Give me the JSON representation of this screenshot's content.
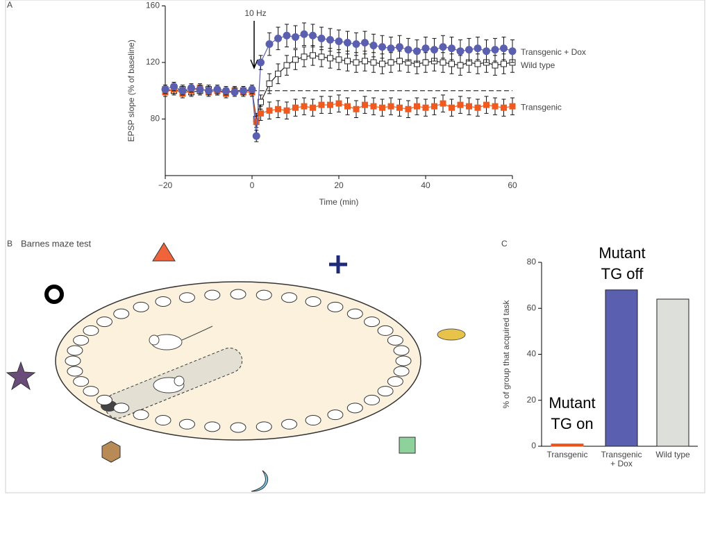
{
  "chart_data": [
    {
      "type": "line",
      "panel": "A",
      "annotation": "10 Hz",
      "xlabel": "Time (min)",
      "ylabel": "EPSP slope (% of baseline)",
      "x": [
        -20,
        -18,
        -16,
        -14,
        -12,
        -10,
        -8,
        -6,
        -4,
        -2,
        0,
        1,
        2,
        4,
        6,
        8,
        10,
        12,
        14,
        16,
        18,
        20,
        22,
        24,
        26,
        28,
        30,
        32,
        34,
        36,
        38,
        40,
        42,
        44,
        46,
        48,
        50,
        52,
        54,
        56,
        58,
        60
      ],
      "xlim": [
        -20,
        60
      ],
      "xticks": [
        {
          "value": -20,
          "label": "−20"
        },
        0,
        20,
        40,
        60
      ],
      "ylim": [
        40,
        160
      ],
      "yticks": [
        80,
        120,
        160
      ],
      "reference": 100,
      "series": [
        {
          "name": "Wild type",
          "color": "#222222",
          "marker": "open-square",
          "values": [
            101,
            100,
            101,
            99,
            100,
            101,
            100,
            99,
            100,
            100,
            100,
            80,
            92,
            105,
            112,
            118,
            122,
            124,
            125,
            124,
            123,
            122,
            121,
            120,
            121,
            120,
            119,
            120,
            121,
            120,
            119,
            120,
            121,
            120,
            119,
            118,
            120,
            119,
            120,
            118,
            119,
            120
          ],
          "errors": [
            3,
            3,
            3,
            3,
            3,
            3,
            3,
            3,
            3,
            3,
            3,
            4,
            5,
            7,
            7,
            7,
            7,
            7,
            7,
            7,
            7,
            7,
            7,
            7,
            7,
            7,
            7,
            7,
            7,
            7,
            7,
            7,
            7,
            7,
            7,
            7,
            7,
            7,
            7,
            7,
            7,
            7
          ]
        },
        {
          "name": "Transgenic",
          "color": "#f05a1e",
          "marker": "square",
          "values": [
            99,
            101,
            98,
            100,
            102,
            99,
            100,
            98,
            100,
            99,
            99,
            78,
            84,
            86,
            87,
            86,
            88,
            89,
            88,
            90,
            90,
            91,
            89,
            87,
            90,
            89,
            88,
            89,
            88,
            87,
            89,
            88,
            89,
            91,
            88,
            90,
            89,
            88,
            90,
            89,
            88,
            89
          ],
          "errors": [
            3,
            3,
            3,
            3,
            3,
            3,
            3,
            3,
            3,
            3,
            3,
            4,
            5,
            6,
            6,
            6,
            6,
            6,
            6,
            6,
            6,
            6,
            6,
            6,
            6,
            6,
            6,
            6,
            6,
            6,
            6,
            6,
            6,
            6,
            6,
            6,
            6,
            6,
            6,
            6,
            6,
            6
          ]
        },
        {
          "name": "Transgenic + Dox",
          "color": "#5b5fb0",
          "marker": "circle",
          "values": [
            101,
            103,
            100,
            102,
            101,
            100,
            101,
            100,
            99,
            100,
            101,
            68,
            120,
            133,
            137,
            139,
            138,
            140,
            139,
            137,
            136,
            135,
            134,
            133,
            134,
            132,
            131,
            130,
            131,
            129,
            128,
            130,
            129,
            131,
            130,
            128,
            129,
            130,
            128,
            129,
            130,
            128
          ],
          "errors": [
            3,
            3,
            3,
            3,
            3,
            3,
            3,
            3,
            3,
            3,
            3,
            4,
            5,
            8,
            8,
            8,
            8,
            8,
            8,
            8,
            8,
            8,
            8,
            8,
            8,
            8,
            8,
            8,
            8,
            8,
            8,
            8,
            8,
            8,
            8,
            8,
            8,
            8,
            8,
            8,
            8,
            8
          ]
        }
      ]
    },
    {
      "type": "bar",
      "panel": "C",
      "ylabel": "% of group that acquired task",
      "categories": [
        "Transgenic",
        "Transgenic + Dox",
        "Wild type"
      ],
      "values": [
        1,
        68,
        64
      ],
      "colors": [
        "#e8541c",
        "#5b5fb0",
        "#dcdfda"
      ],
      "ylim": [
        0,
        80
      ],
      "yticks": [
        0,
        20,
        40,
        60,
        80
      ],
      "annotations": [
        [
          "Mutant",
          "TG on"
        ],
        [
          "Mutant",
          "TG off"
        ]
      ]
    }
  ],
  "panel_b": {
    "label": "B",
    "title": "Barnes maze test"
  }
}
